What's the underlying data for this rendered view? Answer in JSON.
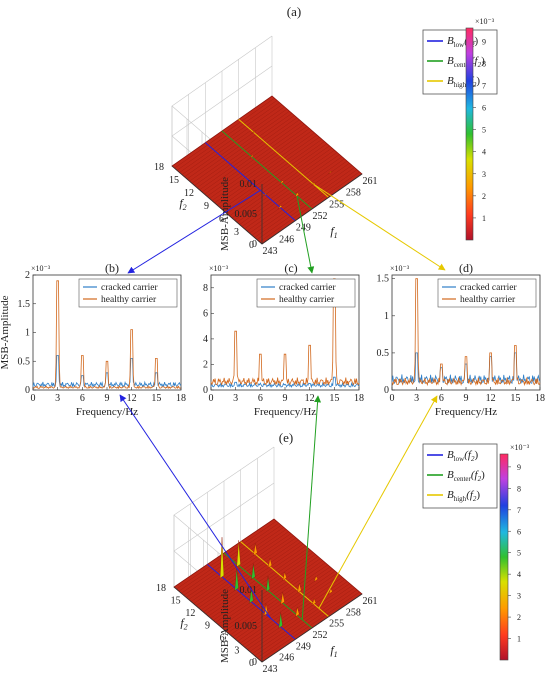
{
  "figure": {
    "panel_a_label": "(a)",
    "panel_b_label": "(b)",
    "panel_c_label": "(c)",
    "panel_d_label": "(d)",
    "panel_e_label": "(e)"
  },
  "colors": {
    "surface": "#c02818",
    "surface_dark": "#8e150d",
    "low": "#2323e0",
    "center": "#22a022",
    "high": "#e6c800",
    "cracked": "#2f7fc8",
    "healthy": "#d2691e"
  },
  "chart_data": [
    {
      "id": "a",
      "type": "surface3d",
      "zlabel": "MSB-Amplitude",
      "xlabel": "f1",
      "ylabel": "f2",
      "z_ticks": [
        "0",
        "0.005",
        "0.01"
      ],
      "x_ticks": [
        "243",
        "246",
        "249",
        "252",
        "255",
        "258",
        "261"
      ],
      "y_ticks": [
        "0",
        "3",
        "6",
        "9",
        "12",
        "15",
        "18"
      ],
      "legend": [
        {
          "main": "B",
          "sub": "low",
          "arg": "(f",
          "arg_sub": "2",
          "close": ")"
        },
        {
          "main": "B",
          "sub": "center",
          "arg": "(f",
          "arg_sub": "2",
          "close": ")"
        },
        {
          "main": "B",
          "sub": "high",
          "arg": "(f",
          "arg_sub": "2",
          "close": ")"
        }
      ],
      "colorbar": {
        "exponent": "×10⁻³",
        "ticks": [
          "1",
          "2",
          "3",
          "4",
          "5",
          "6",
          "7",
          "8",
          "9"
        ]
      },
      "ridges": [
        {
          "f1": 249,
          "f2": 3,
          "z": 0.0004
        },
        {
          "f1": 249,
          "f2": 6,
          "z": 0.0002
        },
        {
          "f1": 252,
          "f2": 3,
          "z": 0.0006
        },
        {
          "f1": 252,
          "f2": 6,
          "z": 0.0004
        },
        {
          "f1": 252,
          "f2": 12,
          "z": 0.0003
        },
        {
          "f1": 255,
          "f2": 3,
          "z": 0.0003
        },
        {
          "f1": 255,
          "f2": 15,
          "z": 0.0002
        },
        {
          "f1": 258,
          "f2": 3,
          "z": 0.0002
        }
      ]
    },
    {
      "id": "b",
      "type": "line",
      "ylabel": "MSB-Amplitude",
      "xlabel": "Frequency/Hz",
      "y_exponent": "×10⁻³",
      "xlim": [
        0,
        18
      ],
      "ylim": [
        0,
        2
      ],
      "x_ticks": [
        "0",
        "3",
        "6",
        "9",
        "12",
        "15",
        "18"
      ],
      "y_ticks": [
        "0",
        "0.5",
        "1",
        "1.5",
        "2"
      ],
      "series": [
        {
          "name": "cracked carrier",
          "x": [
            3,
            6,
            9,
            12,
            15
          ],
          "y": [
            0.6,
            0.25,
            0.3,
            0.55,
            0.3
          ],
          "base": 0.1
        },
        {
          "name": "healthy carrier",
          "x": [
            3,
            6,
            9,
            12,
            15
          ],
          "y": [
            1.9,
            0.6,
            0.5,
            1.05,
            0.55
          ],
          "base": 0.05
        }
      ]
    },
    {
      "id": "c",
      "type": "line",
      "xlabel": "Frequency/Hz",
      "y_exponent": "×10⁻³",
      "xlim": [
        0,
        18
      ],
      "ylim": [
        0,
        9
      ],
      "x_ticks": [
        "0",
        "3",
        "6",
        "9",
        "12",
        "15",
        "18"
      ],
      "y_ticks": [
        "0",
        "2",
        "4",
        "6",
        "8"
      ],
      "series": [
        {
          "name": "cracked carrier",
          "x": [
            3,
            6,
            9,
            12,
            15
          ],
          "y": [
            0.6,
            0.4,
            0.4,
            0.5,
            1.0
          ],
          "base": 0.4
        },
        {
          "name": "healthy carrier",
          "x": [
            3,
            6,
            9,
            12,
            15
          ],
          "y": [
            4.6,
            2.8,
            2.8,
            3.5,
            8.7
          ],
          "base": 0.7
        }
      ]
    },
    {
      "id": "d",
      "type": "line",
      "xlabel": "Frequency/Hz",
      "y_exponent": "×10⁻³",
      "xlim": [
        0,
        18
      ],
      "ylim": [
        0,
        1.55
      ],
      "x_ticks": [
        "0",
        "3",
        "6",
        "9",
        "12",
        "15",
        "18"
      ],
      "y_ticks": [
        "0",
        "0.5",
        "1",
        "1.5"
      ],
      "series": [
        {
          "name": "cracked carrier",
          "x": [
            3,
            6,
            9,
            12,
            15
          ],
          "y": [
            0.5,
            0.3,
            0.35,
            0.45,
            0.5
          ],
          "base": 0.15
        },
        {
          "name": "healthy carrier",
          "x": [
            3,
            6,
            9,
            12,
            15
          ],
          "y": [
            1.5,
            0.35,
            0.45,
            0.5,
            0.6
          ],
          "base": 0.12
        }
      ]
    },
    {
      "id": "e",
      "type": "surface3d",
      "zlabel": "MSB-Amplitude",
      "xlabel": "f1",
      "ylabel": "f2",
      "z_ticks": [
        "0",
        "0.005",
        "0.01"
      ],
      "x_ticks": [
        "243",
        "246",
        "249",
        "252",
        "255",
        "258",
        "261"
      ],
      "y_ticks": [
        "0",
        "3",
        "6",
        "9",
        "12",
        "15",
        "18"
      ],
      "legend": [
        {
          "main": "B",
          "sub": "low",
          "arg": "(f",
          "arg_sub": "2",
          "close": ")"
        },
        {
          "main": "B",
          "sub": "center",
          "arg": "(f",
          "arg_sub": "2",
          "close": ")"
        },
        {
          "main": "B",
          "sub": "high",
          "arg": "(f",
          "arg_sub": "2",
          "close": ")"
        }
      ],
      "colorbar": {
        "exponent": "×10⁻³",
        "ticks": [
          "1",
          "2",
          "3",
          "4",
          "5",
          "6",
          "7",
          "8",
          "9"
        ]
      },
      "ridges": [
        {
          "f1": 249,
          "f2": 15,
          "z": 0.0055
        },
        {
          "f1": 249,
          "f2": 12,
          "z": 0.003
        },
        {
          "f1": 249,
          "f2": 9,
          "z": 0.002
        },
        {
          "f1": 249,
          "f2": 6,
          "z": 0.0015
        },
        {
          "f1": 249,
          "f2": 3,
          "z": 0.002
        },
        {
          "f1": 252,
          "f2": 15,
          "z": 0.0035
        },
        {
          "f1": 252,
          "f2": 12,
          "z": 0.002
        },
        {
          "f1": 252,
          "f2": 9,
          "z": 0.002
        },
        {
          "f1": 252,
          "f2": 6,
          "z": 0.0015
        },
        {
          "f1": 252,
          "f2": 3,
          "z": 0.0012
        },
        {
          "f1": 255,
          "f2": 15,
          "z": 0.0015
        },
        {
          "f1": 255,
          "f2": 12,
          "z": 0.0012
        },
        {
          "f1": 255,
          "f2": 9,
          "z": 0.001
        },
        {
          "f1": 255,
          "f2": 6,
          "z": 0.0012
        },
        {
          "f1": 255,
          "f2": 3,
          "z": 0.0008
        },
        {
          "f1": 258,
          "f2": 6,
          "z": 0.0006
        },
        {
          "f1": 258,
          "f2": 3,
          "z": 0.0006
        }
      ]
    }
  ]
}
